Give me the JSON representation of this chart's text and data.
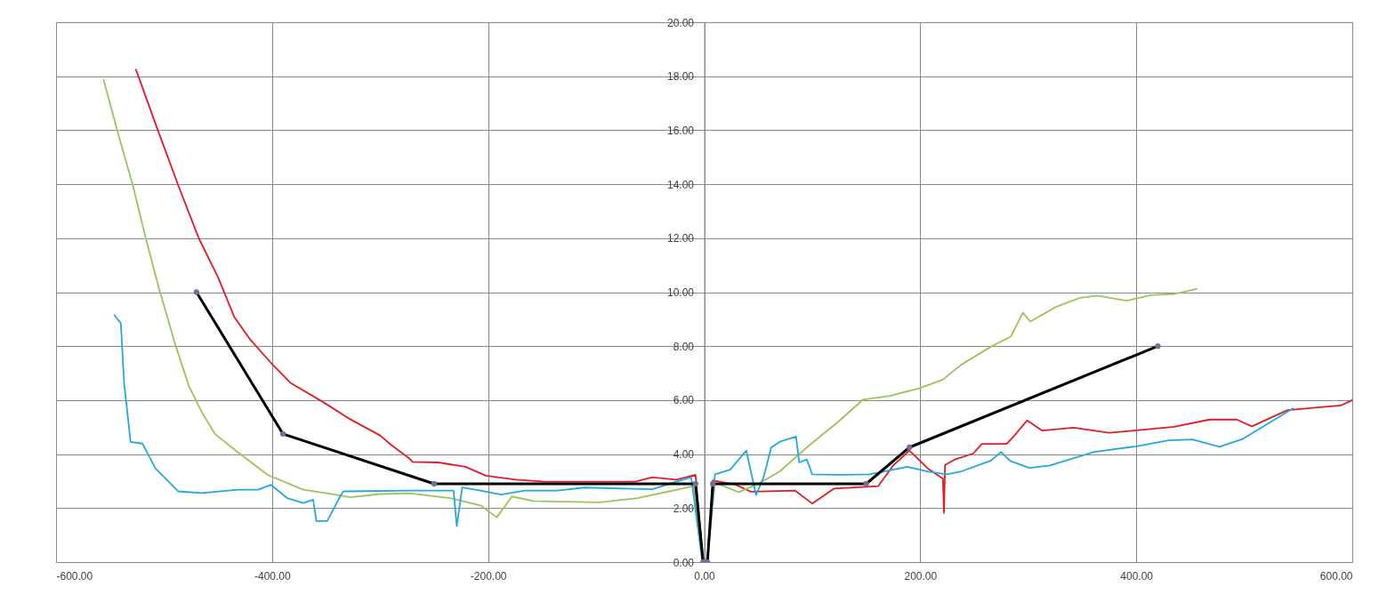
{
  "chart_data": {
    "type": "line",
    "grid": true,
    "line_style": "solid",
    "xlim": [
      -600,
      600
    ],
    "ylim": [
      0,
      20
    ],
    "xticks": [
      {
        "value": -600,
        "label": "-600.00"
      },
      {
        "value": -400,
        "label": "-400.00"
      },
      {
        "value": -200,
        "label": "-200.00"
      },
      {
        "value": 0,
        "label": "0.00"
      },
      {
        "value": 200,
        "label": "200.00"
      },
      {
        "value": 400,
        "label": "400.00"
      },
      {
        "value": 600,
        "label": "600.00"
      }
    ],
    "yticks": [
      {
        "value": 0,
        "label": "0.00"
      },
      {
        "value": 2,
        "label": "2.00"
      },
      {
        "value": 4,
        "label": "4.00"
      },
      {
        "value": 6,
        "label": "6.00"
      },
      {
        "value": 8,
        "label": "8.00"
      },
      {
        "value": 10,
        "label": "10.00"
      },
      {
        "value": 12,
        "label": "12.00"
      },
      {
        "value": 14,
        "label": "14.00"
      },
      {
        "value": 16,
        "label": "16.00"
      },
      {
        "value": 18,
        "label": "18.00"
      },
      {
        "value": 20,
        "label": "20.00"
      }
    ],
    "series": [
      {
        "color": "#e01b22",
        "x": [
          -526,
          -505,
          -487,
          -468,
          -450,
          -435,
          -420,
          -401,
          -383,
          -352,
          -328,
          -300,
          -290,
          -273,
          -270,
          -246,
          -221,
          -202,
          -174,
          -147,
          -64,
          -48,
          -26,
          -8,
          -1,
          3,
          8,
          29,
          43,
          84,
          100,
          120,
          161,
          175,
          190,
          207,
          221,
          222,
          223,
          232,
          249,
          257,
          280,
          287,
          299,
          313,
          342,
          375,
          400,
          435,
          468,
          493,
          507,
          540,
          589,
          600
        ],
        "values": [
          18.24,
          15.92,
          13.97,
          12.01,
          10.55,
          9.08,
          8.23,
          7.38,
          6.64,
          5.91,
          5.3,
          4.69,
          4.35,
          3.84,
          3.71,
          3.69,
          3.53,
          3.2,
          3.05,
          2.98,
          2.98,
          3.14,
          3.05,
          3.23,
          0.05,
          0.05,
          3.03,
          2.87,
          2.61,
          2.65,
          2.17,
          2.72,
          2.81,
          3.58,
          4.13,
          3.47,
          3.09,
          1.82,
          3.6,
          3.8,
          4.02,
          4.38,
          4.38,
          4.68,
          5.25,
          4.87,
          4.98,
          4.79,
          4.88,
          5.01,
          5.28,
          5.28,
          5.03,
          5.63,
          5.8,
          6.0
        ]
      },
      {
        "color": "#9bc45a",
        "x": [
          -556,
          -542,
          -529,
          -517,
          -505,
          -490,
          -477,
          -465,
          -453,
          -432,
          -404,
          -371,
          -340,
          -328,
          -300,
          -273,
          -235,
          -207,
          -192,
          -178,
          -158,
          -97,
          -62,
          -10,
          -2,
          3,
          10,
          32,
          51,
          70,
          98,
          125,
          147,
          172,
          199,
          221,
          238,
          265,
          284,
          295,
          302,
          326,
          348,
          364,
          391,
          413,
          435,
          456
        ],
        "values": [
          17.87,
          15.8,
          13.97,
          12.01,
          10.18,
          8.11,
          6.52,
          5.55,
          4.75,
          4.08,
          3.23,
          2.68,
          2.49,
          2.4,
          2.52,
          2.55,
          2.37,
          2.1,
          1.66,
          2.43,
          2.26,
          2.21,
          2.37,
          2.81,
          0.1,
          0.1,
          2.94,
          2.59,
          2.92,
          3.36,
          4.35,
          5.23,
          6.02,
          6.16,
          6.44,
          6.76,
          7.31,
          7.97,
          8.36,
          9.24,
          8.91,
          9.46,
          9.79,
          9.87,
          9.68,
          9.89,
          9.93,
          10.12
        ]
      },
      {
        "color": "#22a9dc",
        "x": [
          -546,
          -540,
          -537,
          -531,
          -520,
          -508,
          -487,
          -465,
          -432,
          -413,
          -401,
          -386,
          -371,
          -362,
          -359,
          -349,
          -337,
          -334,
          -273,
          -232,
          -229,
          -224,
          -207,
          -188,
          -166,
          -136,
          -111,
          -48,
          -26,
          -12,
          -2,
          3,
          10,
          24,
          39,
          48,
          55,
          62,
          70,
          85,
          88,
          95,
          100,
          125,
          153,
          188,
          207,
          224,
          238,
          265,
          275,
          283,
          301,
          320,
          361,
          400,
          430,
          452,
          477,
          499,
          526,
          545
        ],
        "values": [
          9.15,
          8.84,
          6.64,
          4.45,
          4.39,
          3.47,
          2.62,
          2.56,
          2.68,
          2.68,
          2.86,
          2.37,
          2.19,
          2.31,
          1.52,
          1.52,
          2.43,
          2.62,
          2.65,
          2.65,
          1.33,
          2.76,
          2.65,
          2.5,
          2.65,
          2.65,
          2.76,
          2.7,
          2.98,
          3.14,
          0.1,
          0.1,
          3.25,
          3.42,
          4.13,
          2.48,
          3.14,
          4.24,
          4.46,
          4.65,
          3.69,
          3.8,
          3.25,
          3.23,
          3.25,
          3.53,
          3.36,
          3.25,
          3.36,
          3.75,
          4.08,
          3.75,
          3.49,
          3.58,
          4.08,
          4.29,
          4.51,
          4.54,
          4.27,
          4.57,
          5.23,
          5.69
        ]
      },
      {
        "color": "#000000",
        "marker": "circle",
        "colors": [
          "#7b6b9b",
          "#7b6b9b",
          "#7b6b9b",
          "#7b6b9b",
          "#7b6b9b",
          "#7b6b9b",
          "#7b6b9b",
          "#7b6b9b",
          "#7b6b9b",
          "#7b6b9b"
        ],
        "x": [
          -470,
          -390,
          -250,
          -8,
          -1,
          3,
          8,
          150,
          190,
          420
        ],
        "values": [
          10,
          4.75,
          2.9,
          2.9,
          0,
          0,
          2.9,
          2.9,
          4.25,
          8
        ]
      }
    ]
  }
}
